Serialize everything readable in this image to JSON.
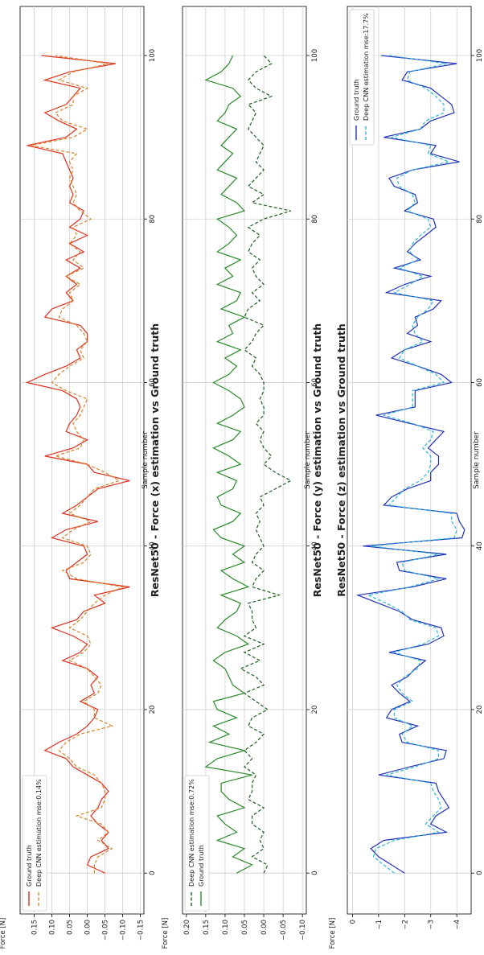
{
  "chart_data": [
    {
      "type": "line",
      "title": "ResNet50 - Force (x) estimation vs Ground truth",
      "xlabel": "Sample number",
      "ylabel": "Force [N]",
      "xlim": [
        -5,
        106
      ],
      "ylim": [
        -0.16,
        0.19
      ],
      "xticks": [
        0,
        20,
        40,
        60,
        80,
        100
      ],
      "yticks": [
        -0.15,
        -0.1,
        -0.05,
        0.0,
        0.05,
        0.1,
        0.15
      ],
      "ytick_labels": [
        "−0.15",
        "−0.10",
        "−0.05",
        "0.00",
        "0.05",
        "0.10",
        "0.15"
      ],
      "grid": true,
      "legend_placement": "lower-left",
      "series": [
        {
          "name": "Ground truth",
          "color": "#e0301e",
          "style": "solid",
          "values": [
            -0.05,
            0.0,
            -0.01,
            -0.06,
            -0.04,
            -0.06,
            -0.03,
            -0.01,
            -0.03,
            -0.04,
            -0.06,
            -0.04,
            0.0,
            0.04,
            0.06,
            0.12,
            0.08,
            0.03,
            0.0,
            -0.02,
            -0.03,
            0.02,
            -0.02,
            -0.01,
            -0.03,
            0.0,
            0.07,
            0.02,
            0.0,
            0.04,
            0.1,
            0.03,
            0.01,
            -0.05,
            -0.02,
            -0.12,
            0.05,
            0.06,
            0.03,
            0.0,
            0.01,
            0.1,
            0.06,
            -0.03,
            0.07,
            0.03,
            0.0,
            -0.03,
            -0.12,
            -0.02,
            0.0,
            0.12,
            0.04,
            0.0,
            0.06,
            0.05,
            0.03,
            0.02,
            0.03,
            0.07,
            0.17,
            0.12,
            0.06,
            0.02,
            0.03,
            0.0,
            0.0,
            0.02,
            0.12,
            0.1,
            0.04,
            0.06,
            0.03,
            0.06,
            0.02,
            0.06,
            0.01,
            0.05,
            0.0,
            0.05,
            0.02,
            0.01,
            0.05,
            0.04,
            0.05,
            0.04,
            0.05,
            0.06,
            0.07,
            0.17,
            0.06,
            0.03,
            0.08,
            0.12,
            0.06,
            0.04,
            0.02,
            0.12,
            0.05,
            -0.08,
            0.13
          ]
        },
        {
          "name": "Deep CNN estimation mse:0.14%",
          "color": "#d9822b",
          "style": "dashed",
          "values": [
            -0.02,
            -0.02,
            -0.03,
            -0.07,
            -0.03,
            -0.06,
            -0.04,
            0.03,
            -0.04,
            -0.05,
            -0.05,
            -0.04,
            -0.02,
            0.03,
            0.05,
            0.08,
            0.06,
            0.02,
            -0.07,
            -0.02,
            -0.02,
            0.01,
            -0.03,
            -0.04,
            -0.02,
            0.0,
            0.05,
            0.01,
            -0.01,
            0.0,
            0.05,
            0.02,
            0.0,
            -0.02,
            -0.05,
            -0.1,
            0.03,
            0.07,
            0.01,
            -0.01,
            0.0,
            0.07,
            0.04,
            -0.01,
            0.05,
            0.02,
            0.0,
            -0.02,
            -0.09,
            -0.05,
            0.0,
            0.09,
            0.02,
            0.01,
            0.03,
            0.04,
            0.02,
            0.01,
            0.0,
            0.06,
            0.1,
            0.08,
            0.05,
            0.01,
            0.02,
            0.0,
            0.01,
            0.03,
            0.08,
            0.07,
            0.04,
            0.05,
            0.02,
            0.06,
            0.01,
            0.04,
            0.02,
            0.05,
            0.03,
            0.04,
            -0.01,
            0.02,
            0.04,
            0.03,
            0.04,
            0.05,
            0.04,
            0.05,
            0.03,
            0.16,
            0.04,
            0.0,
            0.07,
            0.09,
            0.04,
            0.04,
            0.0,
            0.08,
            0.04,
            -0.06,
            0.09
          ]
        }
      ]
    },
    {
      "type": "line",
      "title": "ResNet50 - Force (y) estimation vs Ground truth",
      "xlabel": "Sample number",
      "ylabel": "Force [N]",
      "xlim": [
        -5,
        106
      ],
      "ylim": [
        -0.11,
        0.21
      ],
      "xticks": [
        0,
        20,
        40,
        60,
        80,
        100
      ],
      "yticks": [
        -0.1,
        -0.05,
        0.0,
        0.05,
        0.1,
        0.15,
        0.2
      ],
      "ytick_labels": [
        "−0.10",
        "−0.05",
        "0.00",
        "0.05",
        "0.10",
        "0.15",
        "0.20"
      ],
      "grid": true,
      "legend_placement": "lower-left",
      "series": [
        {
          "name": "Deep CNN estimation mse:0.72%",
          "color": "#1a5e1a",
          "style": "dashed",
          "values": [
            0.0,
            -0.01,
            0.03,
            0.0,
            0.01,
            0.0,
            0.03,
            0.03,
            0.0,
            0.04,
            0.03,
            0.03,
            0.02,
            0.05,
            0.03,
            0.05,
            0.02,
            0.0,
            0.04,
            0.03,
            -0.01,
            0.02,
            0.05,
            0.0,
            0.02,
            0.06,
            0.01,
            0.05,
            0.0,
            0.05,
            0.02,
            0.03,
            0.03,
            0.04,
            -0.04,
            0.03,
            0.02,
            0.0,
            0.03,
            0.02,
            0.0,
            0.01,
            0.02,
            0.01,
            0.02,
            0.0,
            0.01,
            -0.03,
            -0.07,
            -0.03,
            0.0,
            -0.02,
            0.0,
            0.01,
            0.0,
            0.02,
            0.0,
            0.0,
            0.01,
            0.0,
            0.0,
            0.01,
            0.03,
            0.02,
            0.05,
            0.03,
            0.02,
            0.0,
            0.05,
            0.04,
            0.01,
            0.03,
            0.0,
            0.02,
            0.03,
            0.01,
            0.04,
            0.03,
            0.01,
            0.04,
            0.0,
            -0.07,
            0.03,
            0.0,
            0.04,
            0.02,
            0.0,
            0.02,
            0.01,
            0.0,
            0.02,
            0.04,
            0.03,
            0.02,
            0.04,
            -0.02,
            0.02,
            0.04,
            0.02,
            -0.02,
            0.0
          ]
        },
        {
          "name": "Ground truth",
          "color": "#2a8a2a",
          "style": "solid",
          "values": [
            0.07,
            0.03,
            0.08,
            0.05,
            0.12,
            0.07,
            0.1,
            0.12,
            0.05,
            0.09,
            0.11,
            0.11,
            0.03,
            0.15,
            0.12,
            0.05,
            0.14,
            0.09,
            0.13,
            0.07,
            0.12,
            0.13,
            0.05,
            0.08,
            0.09,
            0.1,
            0.13,
            0.1,
            0.04,
            0.07,
            0.12,
            0.1,
            0.07,
            0.06,
            0.11,
            0.04,
            0.08,
            0.11,
            0.05,
            0.08,
            0.05,
            0.11,
            0.13,
            0.08,
            0.06,
            0.11,
            0.12,
            0.08,
            0.07,
            0.12,
            0.06,
            0.09,
            0.13,
            0.08,
            0.06,
            0.12,
            0.08,
            0.05,
            0.06,
            0.09,
            0.13,
            0.09,
            0.07,
            0.1,
            0.06,
            0.12,
            0.08,
            0.09,
            0.05,
            0.11,
            0.07,
            0.06,
            0.12,
            0.08,
            0.1,
            0.06,
            0.12,
            0.09,
            0.07,
            0.09,
            0.12,
            0.05,
            0.07,
            0.11,
            0.09,
            0.07,
            0.12,
            0.1,
            0.08,
            0.11,
            0.09,
            0.07,
            0.12,
            0.1,
            0.09,
            0.06,
            0.08,
            0.15,
            0.11,
            0.09,
            0.08
          ]
        }
      ]
    },
    {
      "type": "line",
      "title": "ResNet50 - Force (z) estimation vs Ground truth",
      "xlabel": "Sample number",
      "ylabel": "Force [N]",
      "xlim": [
        -5,
        106
      ],
      "ylim": [
        -4.55,
        0.2
      ],
      "xticks": [
        0,
        20,
        40,
        60,
        80,
        100
      ],
      "yticks": [
        -4,
        -3,
        -2,
        -1,
        0
      ],
      "ytick_labels": [
        "−4",
        "−3",
        "−2",
        "−1",
        "0"
      ],
      "grid": true,
      "legend_placement": "upper-left",
      "series": [
        {
          "name": "Ground truth",
          "color": "#2233bb",
          "style": "solid",
          "values": [
            -2.0,
            -1.5,
            -1.0,
            -0.7,
            -1.2,
            -3.6,
            -3.0,
            -3.2,
            -3.7,
            -3.5,
            -3.3,
            -3.2,
            -1.0,
            -2.2,
            -3.5,
            -3.6,
            -1.9,
            -1.8,
            -2.5,
            -1.3,
            -1.5,
            -2.2,
            -1.8,
            -1.5,
            -2.1,
            -2.4,
            -2.8,
            -1.4,
            -2.9,
            -3.5,
            -3.4,
            -2.3,
            -1.8,
            -1.0,
            -0.2,
            -2.3,
            -3.6,
            -1.8,
            -1.7,
            -3.6,
            -0.4,
            -4.2,
            -4.3,
            -4.1,
            -4.0,
            -1.2,
            -1.5,
            -2.1,
            -3.0,
            -3.0,
            -3.3,
            -3.3,
            -2.9,
            -3.2,
            -3.5,
            -2.2,
            -0.9,
            -2.4,
            -2.4,
            -2.4,
            -3.8,
            -3.4,
            -2.5,
            -1.5,
            -2.0,
            -3.0,
            -2.1,
            -2.5,
            -2.4,
            -3.1,
            -3.4,
            -1.3,
            -2.0,
            -3.0,
            -1.6,
            -2.6,
            -2.1,
            -2.4,
            -2.8,
            -3.2,
            -3.1,
            -2.0,
            -2.5,
            -2.4,
            -1.6,
            -1.4,
            -2.3,
            -4.1,
            -3.0,
            -3.2,
            -1.2,
            -2.6,
            -3.0,
            -3.9,
            -3.8,
            -3.4,
            -3.0,
            -1.9,
            -2.1,
            -4.0,
            -1.1
          ]
        },
        {
          "name": "Deep CNN estimation mse:17.7%",
          "color": "#2bb5d9",
          "style": "dashed",
          "values": [
            -1.6,
            -1.2,
            -0.8,
            -0.9,
            -1.6,
            -3.3,
            -2.8,
            -3.1,
            -3.4,
            -3.3,
            -3.1,
            -3.0,
            -1.3,
            -2.4,
            -3.3,
            -3.3,
            -2.1,
            -1.9,
            -2.3,
            -1.6,
            -1.6,
            -2.3,
            -1.9,
            -1.7,
            -2.0,
            -2.5,
            -2.6,
            -1.6,
            -2.7,
            -3.3,
            -3.2,
            -2.2,
            -1.9,
            -1.3,
            -0.6,
            -2.2,
            -3.3,
            -2.0,
            -1.9,
            -3.3,
            -0.7,
            -3.9,
            -4.0,
            -3.8,
            -3.8,
            -1.4,
            -1.7,
            -2.0,
            -2.6,
            -2.9,
            -3.0,
            -3.0,
            -2.7,
            -3.0,
            -3.1,
            -2.3,
            -1.2,
            -2.3,
            -2.3,
            -2.3,
            -3.5,
            -3.2,
            -2.5,
            -1.8,
            -2.0,
            -2.7,
            -2.4,
            -2.3,
            -2.5,
            -2.9,
            -3.1,
            -1.6,
            -2.2,
            -2.7,
            -1.8,
            -2.5,
            -2.2,
            -2.3,
            -2.6,
            -3.0,
            -2.9,
            -2.1,
            -2.4,
            -2.3,
            -1.8,
            -1.7,
            -2.3,
            -3.7,
            -2.9,
            -3.0,
            -1.5,
            -2.6,
            -2.8,
            -3.5,
            -3.5,
            -3.2,
            -2.8,
            -2.1,
            -2.2,
            -3.6,
            -1.4
          ]
        }
      ]
    }
  ]
}
